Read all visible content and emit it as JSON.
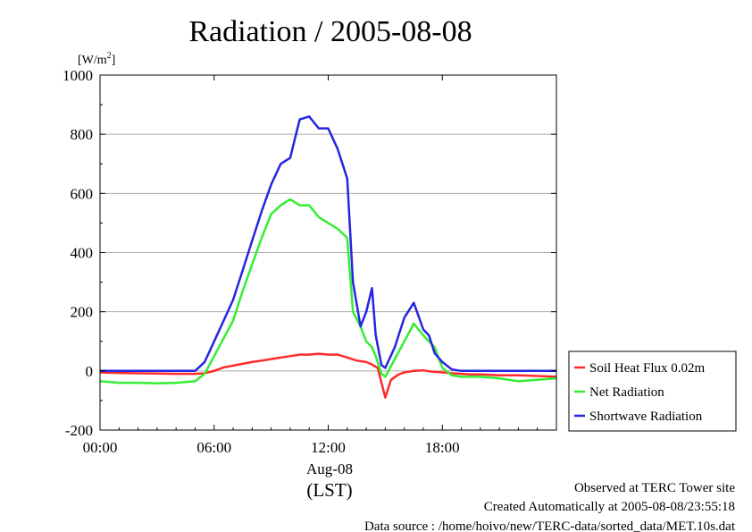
{
  "chart_data": {
    "type": "line",
    "title": "Radiation / 2005-08-08",
    "unit_label": "[W/m2]",
    "unit_main": "[W/m",
    "unit_sup": "2",
    "unit_close": "]",
    "xlabel_date": "Aug-08",
    "xlabel_tz": "(LST)",
    "xlim": [
      0,
      24
    ],
    "ylim": [
      -200,
      1000
    ],
    "grid": true,
    "legend_position": "right",
    "y_ticks": [
      -200,
      0,
      200,
      400,
      600,
      800,
      1000
    ],
    "y_tick_labels": [
      "-200",
      "0",
      "200",
      "400",
      "600",
      "800",
      "1000"
    ],
    "x_ticks": [
      0,
      6,
      12,
      18
    ],
    "x_tick_labels": [
      "00:00",
      "06:00",
      "12:00",
      "18:00"
    ],
    "series": [
      {
        "name": "Soil Heat Flux 0.02m",
        "color": "#ff2a2a",
        "x": [
          0,
          1,
          2,
          3,
          4,
          5,
          5.5,
          6,
          6.5,
          7,
          7.5,
          8,
          8.5,
          9,
          9.5,
          10,
          10.5,
          11,
          11.5,
          12,
          12.5,
          13,
          13.5,
          14,
          14.3,
          14.6,
          14.8,
          15,
          15.3,
          15.7,
          16,
          16.5,
          17,
          17.5,
          18,
          18.5,
          19,
          19.5,
          20,
          21,
          22,
          23,
          24
        ],
        "values": [
          -5,
          -7,
          -8,
          -9,
          -10,
          -10,
          -8,
          0,
          12,
          18,
          24,
          30,
          35,
          40,
          45,
          50,
          55,
          55,
          58,
          55,
          55,
          45,
          35,
          30,
          22,
          10,
          -40,
          -90,
          -30,
          -12,
          -5,
          0,
          2,
          -3,
          -5,
          -8,
          -10,
          -12,
          -12,
          -15,
          -15,
          -17,
          -20
        ]
      },
      {
        "name": "Net Radiation",
        "color": "#33ee33",
        "x": [
          0,
          1,
          2,
          3,
          4,
          5,
          5.5,
          6,
          6.5,
          7,
          7.5,
          8,
          8.5,
          9,
          9.5,
          10,
          10.5,
          11,
          11.5,
          12,
          12.5,
          13,
          13.3,
          13.7,
          14,
          14.3,
          14.5,
          14.8,
          15,
          15.5,
          16,
          16.5,
          17,
          17.3,
          17.6,
          18,
          18.5,
          19,
          20,
          21,
          22,
          23,
          24
        ],
        "values": [
          -35,
          -40,
          -40,
          -42,
          -40,
          -35,
          -10,
          50,
          110,
          170,
          270,
          360,
          450,
          530,
          560,
          580,
          560,
          560,
          520,
          500,
          480,
          450,
          200,
          150,
          100,
          80,
          50,
          -10,
          -20,
          40,
          100,
          160,
          120,
          100,
          80,
          10,
          -15,
          -20,
          -20,
          -25,
          -35,
          -30,
          -25
        ]
      },
      {
        "name": "Shortwave Radiation",
        "color": "#2525e0",
        "x": [
          0,
          1,
          2,
          3,
          4,
          5,
          5.5,
          6,
          6.5,
          7,
          7.5,
          8,
          8.5,
          9,
          9.5,
          10,
          10.5,
          11,
          11.5,
          12,
          12.5,
          13,
          13.3,
          13.7,
          14,
          14.3,
          14.5,
          14.8,
          15,
          15.5,
          16,
          16.5,
          17,
          17.3,
          17.6,
          18,
          18.5,
          19,
          20,
          21,
          22,
          23,
          24
        ],
        "values": [
          0,
          0,
          0,
          0,
          0,
          0,
          30,
          100,
          170,
          240,
          340,
          440,
          540,
          630,
          700,
          720,
          850,
          860,
          820,
          820,
          750,
          650,
          300,
          150,
          200,
          280,
          120,
          20,
          10,
          80,
          180,
          230,
          140,
          120,
          60,
          30,
          5,
          0,
          0,
          0,
          0,
          0,
          0
        ]
      }
    ],
    "annotations": [
      "Observed at TERC Tower site",
      "Created Automatically at 2005-08-08/23:55:18",
      "Data source : /home/hoivo/new/TERC-data/sorted_data/MET.10s.dat"
    ]
  }
}
